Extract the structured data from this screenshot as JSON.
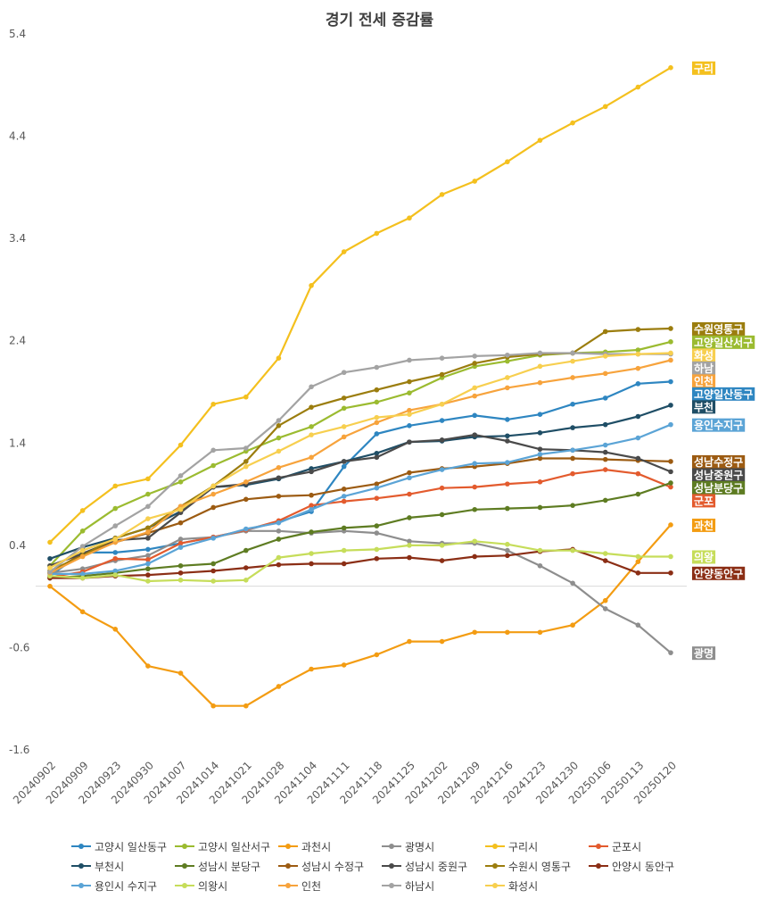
{
  "chart_data": {
    "type": "line",
    "title": "경기 전세 증감률",
    "xlabel": "",
    "ylabel": "",
    "ylim": [
      -1.6,
      5.4
    ],
    "yticks": [
      5.4,
      4.4,
      3.4,
      2.4,
      1.4,
      0.4,
      -0.6,
      -1.6
    ],
    "ytick_labels": [
      "5.4",
      "4.4",
      "3.4",
      "2.4",
      "1.4",
      "0.4",
      "-0.6",
      "-1.6"
    ],
    "categories": [
      "20240902",
      "20240909",
      "20240923",
      "20240930",
      "20241007",
      "20241014",
      "20241021",
      "20241028",
      "20241104",
      "20241111",
      "20241118",
      "20241125",
      "20241202",
      "20241209",
      "20241216",
      "20241223",
      "20241230",
      "20250106",
      "20250113",
      "20250120"
    ],
    "legend_position": "bottom",
    "series": [
      {
        "name": "고양시 일산동구",
        "color": "#2E86C1",
        "end_label": "고양일산동구",
        "values": [
          0.1,
          0.33,
          0.33,
          0.36,
          0.42,
          0.48,
          0.55,
          0.63,
          0.73,
          1.17,
          1.49,
          1.57,
          1.62,
          1.67,
          1.63,
          1.68,
          1.78,
          1.84,
          1.98,
          2.0
        ]
      },
      {
        "name": "고양시 일산서구",
        "color": "#9BBB30",
        "end_label": "고양일산서구",
        "values": [
          0.2,
          0.54,
          0.76,
          0.9,
          1.02,
          1.18,
          1.32,
          1.45,
          1.56,
          1.74,
          1.8,
          1.89,
          2.04,
          2.15,
          2.2,
          2.26,
          2.28,
          2.29,
          2.31,
          2.39
        ]
      },
      {
        "name": "과천시",
        "color": "#F39C12",
        "end_label": "과천",
        "values": [
          0.0,
          -0.25,
          -0.42,
          -0.78,
          -0.85,
          -1.17,
          -1.17,
          -0.98,
          -0.81,
          -0.77,
          -0.67,
          -0.54,
          -0.54,
          -0.45,
          -0.45,
          -0.45,
          -0.38,
          -0.14,
          0.24,
          0.6
        ]
      },
      {
        "name": "광명시",
        "color": "#8E8E8E",
        "end_label": "광명",
        "values": [
          0.13,
          0.17,
          0.25,
          0.3,
          0.46,
          0.48,
          0.54,
          0.54,
          0.52,
          0.54,
          0.52,
          0.44,
          0.42,
          0.42,
          0.35,
          0.2,
          0.03,
          -0.22,
          -0.38,
          -0.65
        ]
      },
      {
        "name": "구리시",
        "color": "#F4C01E",
        "end_label": "구리",
        "values": [
          0.43,
          0.74,
          0.98,
          1.05,
          1.38,
          1.78,
          1.85,
          2.23,
          2.94,
          3.27,
          3.45,
          3.6,
          3.83,
          3.96,
          4.15,
          4.36,
          4.53,
          4.69,
          4.88,
          5.07
        ]
      },
      {
        "name": "군포시",
        "color": "#E35B2E",
        "end_label": "군포",
        "values": [
          0.09,
          0.14,
          0.27,
          0.26,
          0.42,
          0.48,
          0.55,
          0.64,
          0.79,
          0.83,
          0.86,
          0.9,
          0.96,
          0.97,
          1.0,
          1.02,
          1.1,
          1.14,
          1.1,
          0.97
        ]
      },
      {
        "name": "부천시",
        "color": "#1F4E66",
        "end_label": "부천",
        "values": [
          0.27,
          0.38,
          0.47,
          0.57,
          0.73,
          0.97,
          0.99,
          1.05,
          1.15,
          1.22,
          1.3,
          1.41,
          1.42,
          1.46,
          1.47,
          1.5,
          1.55,
          1.58,
          1.66,
          1.77
        ]
      },
      {
        "name": "성남시 분당구",
        "color": "#5E7C22",
        "end_label": "성남분당구",
        "values": [
          0.08,
          0.1,
          0.13,
          0.17,
          0.2,
          0.22,
          0.35,
          0.46,
          0.53,
          0.57,
          0.59,
          0.67,
          0.7,
          0.75,
          0.76,
          0.77,
          0.79,
          0.84,
          0.9,
          1.01
        ]
      },
      {
        "name": "성남시 수정구",
        "color": "#9C5B12",
        "end_label": "성남수정구",
        "values": [
          0.13,
          0.32,
          0.43,
          0.52,
          0.62,
          0.77,
          0.85,
          0.88,
          0.89,
          0.95,
          1.0,
          1.11,
          1.15,
          1.17,
          1.2,
          1.25,
          1.25,
          1.24,
          1.23,
          1.22
        ]
      },
      {
        "name": "성남시 중원구",
        "color": "#4A4A4A",
        "end_label": "성남중원구",
        "values": [
          0.2,
          0.32,
          0.45,
          0.47,
          0.72,
          0.97,
          1.0,
          1.06,
          1.12,
          1.22,
          1.26,
          1.41,
          1.43,
          1.48,
          1.42,
          1.34,
          1.33,
          1.31,
          1.25,
          1.12
        ]
      },
      {
        "name": "수원시 영통구",
        "color": "#9B7D0E",
        "end_label": "수원영통구",
        "values": [
          0.15,
          0.3,
          0.47,
          0.57,
          0.78,
          0.98,
          1.22,
          1.57,
          1.75,
          1.84,
          1.92,
          2.0,
          2.07,
          2.18,
          2.24,
          2.27,
          2.28,
          2.49,
          2.51,
          2.52
        ]
      },
      {
        "name": "안양시 동안구",
        "color": "#8B2E15",
        "end_label": "안양동안구",
        "values": [
          0.08,
          0.08,
          0.1,
          0.11,
          0.13,
          0.15,
          0.18,
          0.21,
          0.22,
          0.22,
          0.27,
          0.28,
          0.25,
          0.29,
          0.3,
          0.34,
          0.36,
          0.25,
          0.13,
          0.13
        ]
      },
      {
        "name": "용인시 수지구",
        "color": "#5BA4D6",
        "end_label": "용인수지구",
        "values": [
          0.12,
          0.12,
          0.15,
          0.22,
          0.38,
          0.47,
          0.56,
          0.62,
          0.75,
          0.88,
          0.96,
          1.06,
          1.14,
          1.2,
          1.21,
          1.29,
          1.33,
          1.38,
          1.45,
          1.58
        ]
      },
      {
        "name": "의왕시",
        "color": "#C6DD5A",
        "end_label": "의왕",
        "values": [
          0.1,
          0.08,
          0.11,
          0.05,
          0.06,
          0.05,
          0.06,
          0.28,
          0.32,
          0.35,
          0.36,
          0.4,
          0.4,
          0.44,
          0.41,
          0.35,
          0.35,
          0.32,
          0.29,
          0.29
        ]
      },
      {
        "name": "인천",
        "color": "#F7A33C",
        "end_label": "인천",
        "values": [
          0.13,
          0.29,
          0.43,
          0.53,
          0.78,
          0.9,
          1.02,
          1.16,
          1.26,
          1.46,
          1.6,
          1.72,
          1.78,
          1.86,
          1.94,
          1.99,
          2.04,
          2.08,
          2.13,
          2.21
        ]
      },
      {
        "name": "하남시",
        "color": "#A3A3A3",
        "end_label": "하남",
        "values": [
          0.14,
          0.39,
          0.59,
          0.78,
          1.08,
          1.33,
          1.35,
          1.62,
          1.95,
          2.09,
          2.14,
          2.21,
          2.23,
          2.25,
          2.26,
          2.28,
          2.28,
          2.27,
          2.27,
          2.27
        ]
      },
      {
        "name": "화성시",
        "color": "#F7CF4F",
        "end_label": "화성",
        "values": [
          0.18,
          0.35,
          0.46,
          0.66,
          0.75,
          0.98,
          1.17,
          1.32,
          1.48,
          1.56,
          1.65,
          1.68,
          1.78,
          1.94,
          2.04,
          2.15,
          2.2,
          2.25,
          2.27,
          2.28
        ]
      }
    ]
  }
}
